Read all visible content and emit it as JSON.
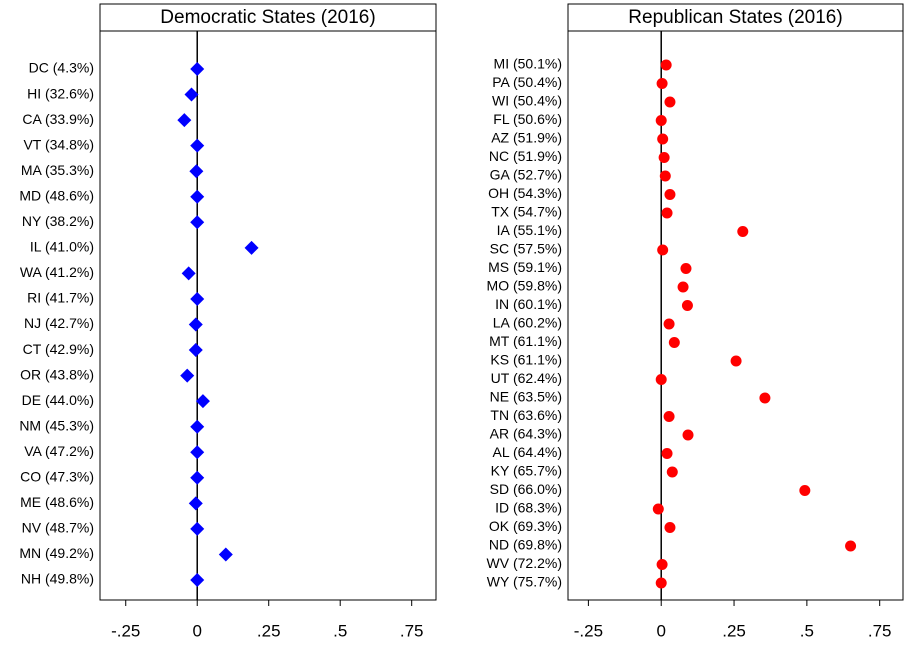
{
  "chart_data": [
    {
      "type": "dot",
      "title": "Democratic States (2016)",
      "marker": "diamond",
      "color": "#0000ff",
      "categories": [
        "DC (4.3%)",
        "HI (32.6%)",
        "CA (33.9%)",
        "VT (34.8%)",
        "MA (35.3%)",
        "MD (48.6%)",
        "NY (38.2%)",
        "IL (41.0%)",
        "WA (41.2%)",
        "RI (41.7%)",
        "NJ (42.7%)",
        "CT (42.9%)",
        "OR (43.8%)",
        "DE (44.0%)",
        "NM (45.3%)",
        "VA (47.2%)",
        "CO (47.3%)",
        "ME (48.6%)",
        "NV (48.7%)",
        "MN (49.2%)",
        "NH (49.8%)"
      ],
      "values": [
        0,
        -0.02,
        -0.045,
        0,
        -0.003,
        0,
        0,
        0.19,
        -0.03,
        0,
        -0.005,
        -0.005,
        -0.035,
        0.02,
        0,
        0,
        0,
        -0.005,
        0,
        0.1,
        0
      ],
      "xlim": [
        -0.34,
        0.835
      ],
      "xticks": [
        {
          "value": -0.25,
          "label": "-.25"
        },
        0,
        {
          "value": 0.25,
          "label": ".25"
        },
        {
          "value": 0.5,
          "label": ".5"
        },
        {
          "value": 0.75,
          "label": ".75"
        }
      ]
    },
    {
      "type": "dot",
      "title": "Republican States (2016)",
      "marker": "circle",
      "color": "#ff0000",
      "categories": [
        "MI (50.1%)",
        "PA (50.4%)",
        "WI (50.4%)",
        "FL (50.6%)",
        "AZ (51.9%)",
        "NC (51.9%)",
        "GA (52.7%)",
        "OH (54.3%)",
        "TX (54.7%)",
        "IA (55.1%)",
        "SC (57.5%)",
        "MS (59.1%)",
        "MO (59.8%)",
        "IN (60.1%)",
        "LA (60.2%)",
        "MT (61.1%)",
        "KS (61.1%)",
        "UT (62.4%)",
        "NE (63.5%)",
        "TN (63.6%)",
        "AR (64.3%)",
        "AL (64.4%)",
        "KY (65.7%)",
        "SD (66.0%)",
        "ID (68.3%)",
        "OK (69.3%)",
        "ND (69.8%)",
        "WV (72.2%)",
        "WY (75.7%)"
      ],
      "values": [
        0.017,
        0.003,
        0.03,
        0,
        0.005,
        0.01,
        0.014,
        0.03,
        0.02,
        0.28,
        0.005,
        0.085,
        0.075,
        0.09,
        0.027,
        0.045,
        0.257,
        0,
        0.356,
        0.027,
        0.092,
        0.02,
        0.038,
        0.493,
        -0.01,
        0.03,
        0.65,
        0.003,
        0
      ],
      "xlim": [
        -0.32,
        0.83
      ],
      "xticks": [
        {
          "value": -0.25,
          "label": "-.25"
        },
        0,
        {
          "value": 0.25,
          "label": ".25"
        },
        {
          "value": 0.5,
          "label": ".5"
        },
        {
          "value": 0.75,
          "label": ".75"
        }
      ]
    }
  ]
}
